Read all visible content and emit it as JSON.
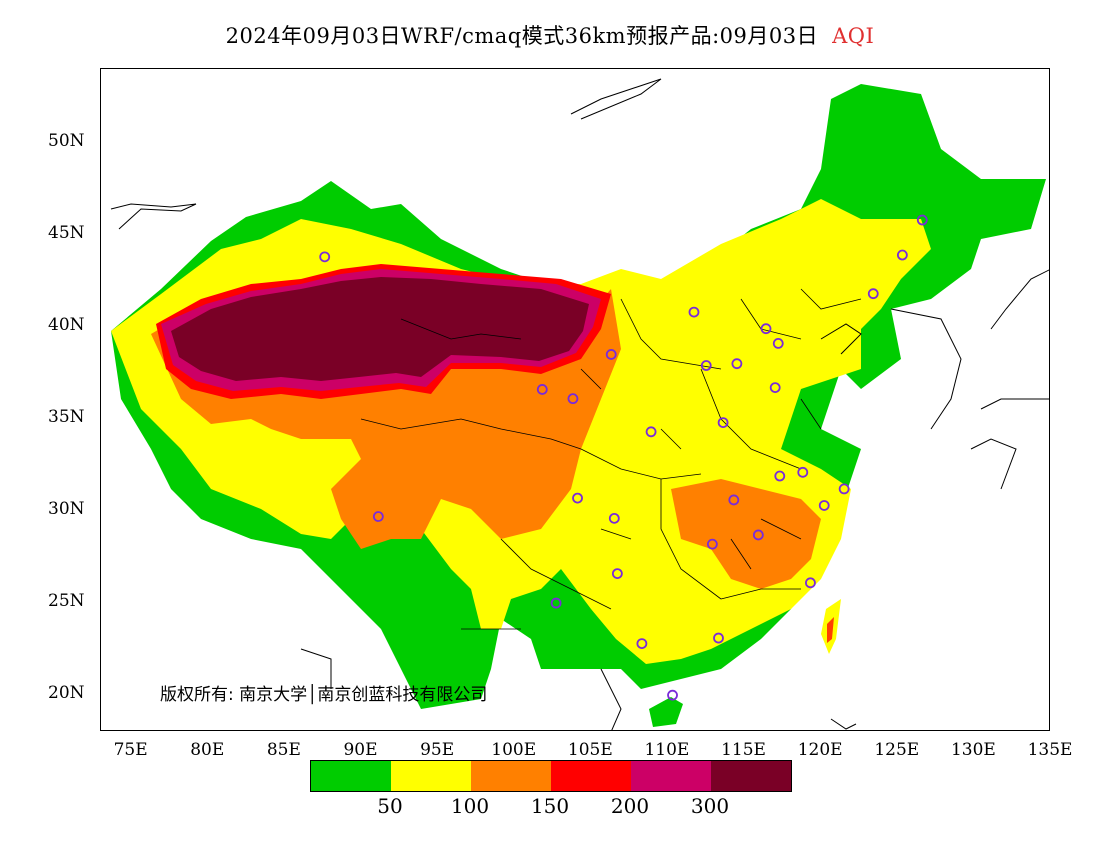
{
  "title": {
    "main": "2024年09月03日WRF/cmaq模式36km预报产品:09月03日",
    "highlight": "AQI"
  },
  "copyright": "版权所有: 南京大学│南京创蓝科技有限公司",
  "axes": {
    "y_labels": [
      "50N",
      "45N",
      "40N",
      "35N",
      "30N",
      "25N",
      "20N"
    ],
    "x_labels": [
      "75E",
      "80E",
      "85E",
      "90E",
      "95E",
      "100E",
      "105E",
      "110E",
      "115E",
      "120E",
      "125E",
      "130E",
      "135E"
    ]
  },
  "legend": {
    "colors": [
      "#00cc00",
      "#ffff00",
      "#ff8000",
      "#ff0000",
      "#cc0066",
      "#7a0026"
    ],
    "labels": [
      "50",
      "100",
      "150",
      "200",
      "300"
    ]
  },
  "stations": [
    {
      "lon": 87.6,
      "lat": 43.8
    },
    {
      "lon": 101.8,
      "lat": 36.6
    },
    {
      "lon": 103.8,
      "lat": 36.1
    },
    {
      "lon": 106.3,
      "lat": 38.5
    },
    {
      "lon": 111.7,
      "lat": 40.8
    },
    {
      "lon": 112.5,
      "lat": 37.9
    },
    {
      "lon": 114.5,
      "lat": 38.0
    },
    {
      "lon": 116.4,
      "lat": 39.9
    },
    {
      "lon": 117.2,
      "lat": 39.1
    },
    {
      "lon": 117.0,
      "lat": 36.7
    },
    {
      "lon": 113.6,
      "lat": 34.8
    },
    {
      "lon": 108.9,
      "lat": 34.3
    },
    {
      "lon": 117.3,
      "lat": 31.9
    },
    {
      "lon": 118.8,
      "lat": 32.1
    },
    {
      "lon": 120.2,
      "lat": 30.3
    },
    {
      "lon": 121.5,
      "lat": 31.2
    },
    {
      "lon": 114.3,
      "lat": 30.6
    },
    {
      "lon": 112.9,
      "lat": 28.2
    },
    {
      "lon": 115.9,
      "lat": 28.7
    },
    {
      "lon": 119.3,
      "lat": 26.1
    },
    {
      "lon": 113.3,
      "lat": 23.1
    },
    {
      "lon": 108.3,
      "lat": 22.8
    },
    {
      "lon": 110.3,
      "lat": 20.0
    },
    {
      "lon": 102.7,
      "lat": 25.0
    },
    {
      "lon": 106.7,
      "lat": 26.6
    },
    {
      "lon": 104.1,
      "lat": 30.7
    },
    {
      "lon": 106.5,
      "lat": 29.6
    },
    {
      "lon": 91.1,
      "lat": 29.7
    },
    {
      "lon": 123.4,
      "lat": 41.8
    },
    {
      "lon": 125.3,
      "lat": 43.9
    },
    {
      "lon": 126.6,
      "lat": 45.8
    }
  ]
}
